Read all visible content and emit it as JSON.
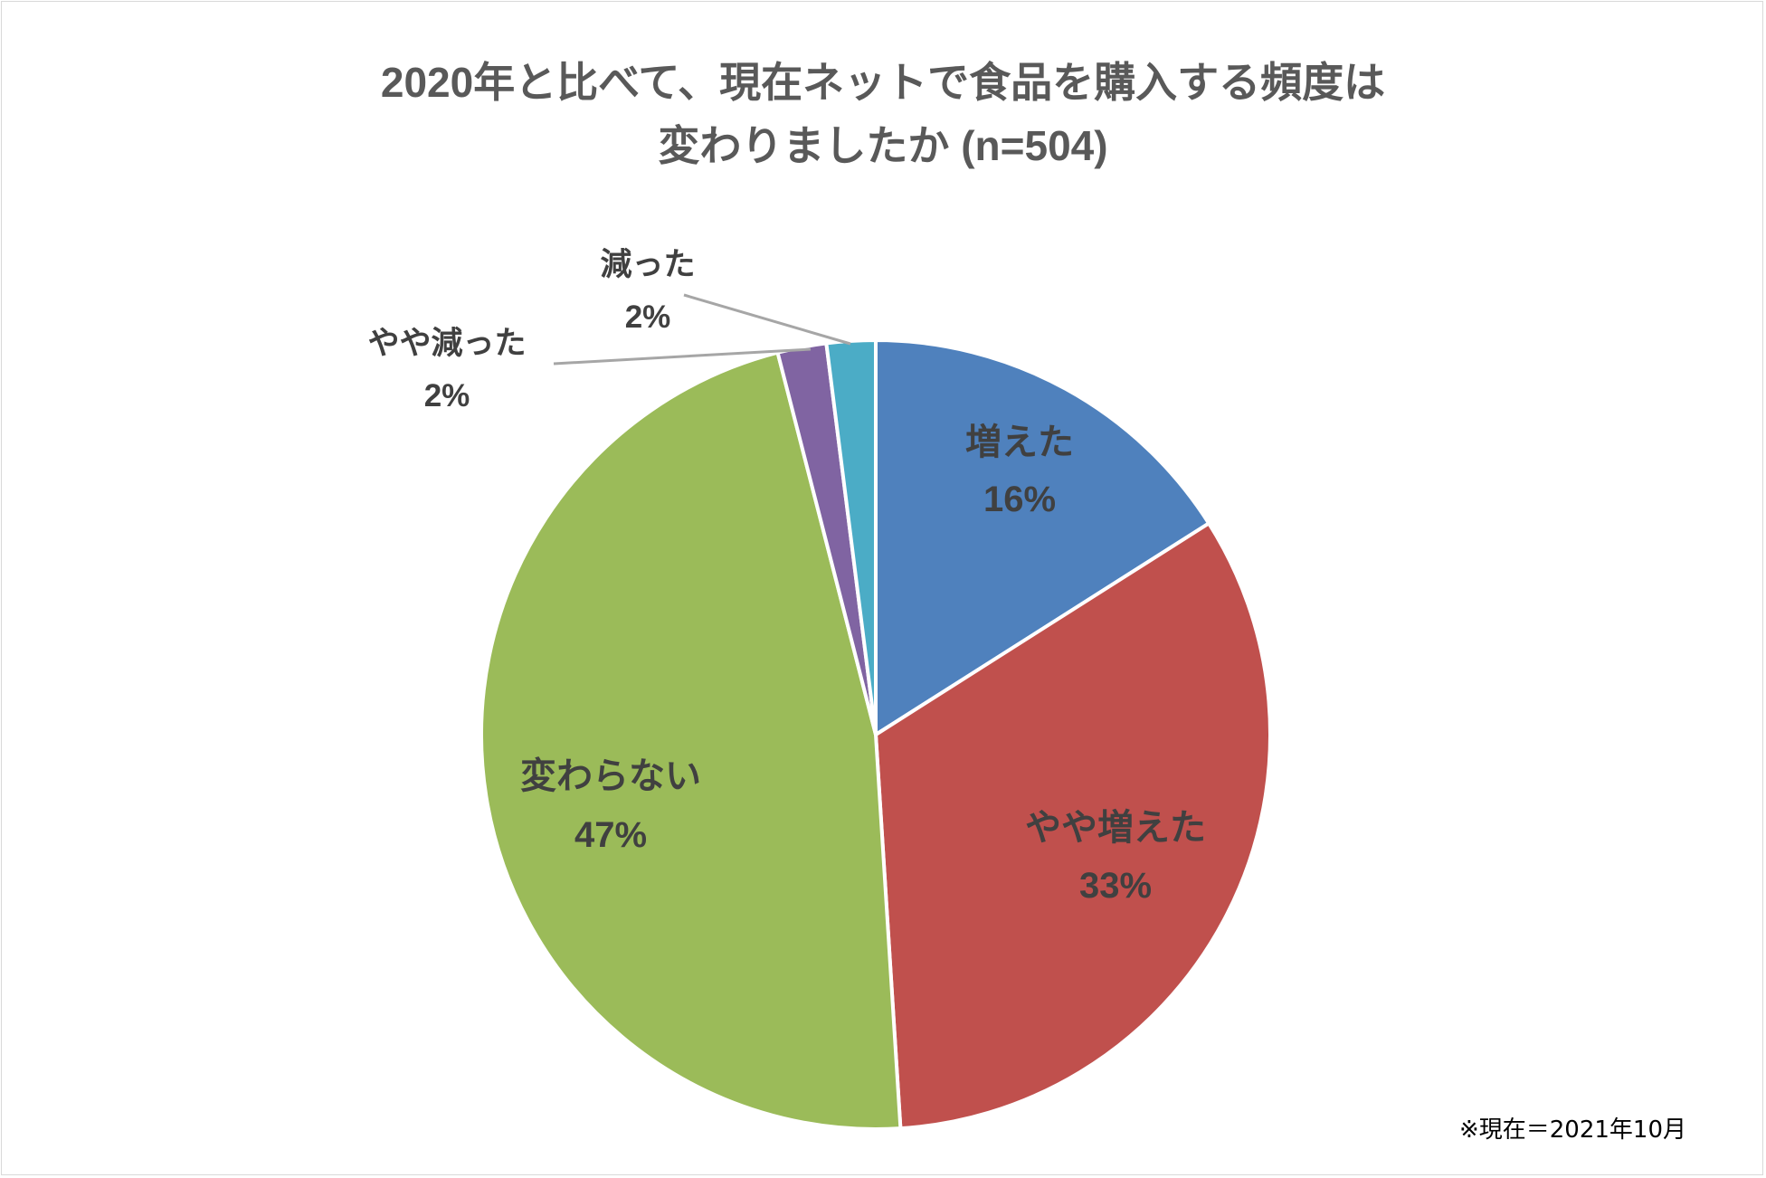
{
  "chart_data": {
    "type": "pie",
    "title_line1": "2020年と比べて、現在ネットで食品を購入する頻度は",
    "title_line2": "変わりましたか (n=504)",
    "slices": [
      {
        "label": "増えた",
        "value": 16,
        "value_label": "16%",
        "color": "#4F81BD"
      },
      {
        "label": "やや増えた",
        "value": 33,
        "value_label": "33%",
        "color": "#C0504D"
      },
      {
        "label": "変わらない",
        "value": 47,
        "value_label": "47%",
        "color": "#9BBB59"
      },
      {
        "label": "やや減った",
        "value": 2,
        "value_label": "2%",
        "color": "#8064A2"
      },
      {
        "label": "減った",
        "value": 2,
        "value_label": "2%",
        "color": "#4BACC6"
      }
    ],
    "note": "※現在＝2021年10月"
  }
}
